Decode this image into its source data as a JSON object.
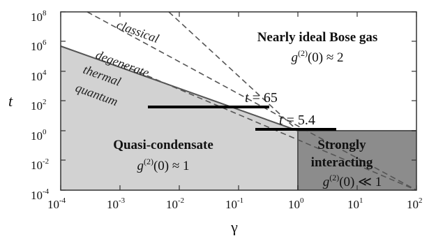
{
  "axes": {
    "xlabel": "γ",
    "ylabel": "t",
    "x_range_exp": [
      -4,
      2
    ],
    "y_range_exp": [
      -4,
      8
    ],
    "x_scale": "log",
    "y_scale": "log",
    "x_ticks": [
      {
        "base": "10",
        "exp": "-4",
        "e": -4
      },
      {
        "base": "10",
        "exp": "-3",
        "e": -3
      },
      {
        "base": "10",
        "exp": "-2",
        "e": -2
      },
      {
        "base": "10",
        "exp": "-1",
        "e": -1
      },
      {
        "base": "10",
        "exp": "0",
        "e": 0
      },
      {
        "base": "10",
        "exp": "1",
        "e": 1
      },
      {
        "base": "10",
        "exp": "2",
        "e": 2
      }
    ],
    "y_ticks": [
      {
        "base": "10",
        "exp": "-4",
        "e": -4
      },
      {
        "base": "10",
        "exp": "-2",
        "e": -2
      },
      {
        "base": "10",
        "exp": "0",
        "e": 0
      },
      {
        "base": "10",
        "exp": "2",
        "e": 2
      },
      {
        "base": "10",
        "exp": "4",
        "e": 4
      },
      {
        "base": "10",
        "exp": "6",
        "e": 6
      },
      {
        "base": "10",
        "exp": "8",
        "e": 8
      }
    ]
  },
  "boundaries": {
    "classical_label": "classical",
    "degenerate_label": "degenerate",
    "thermal_label": "thermal",
    "quantum_label": "quantum"
  },
  "regions": {
    "ideal": {
      "title": "Nearly ideal Bose gas",
      "g_base": "g",
      "g_sup": "(2)",
      "g_rel": "(0) ≈ 2"
    },
    "quasi": {
      "title": "Quasi-condensate",
      "g_base": "g",
      "g_sup": "(2)",
      "g_rel": "(0) ≈ 1"
    },
    "strong": {
      "title_line1": "Strongly",
      "title_line2": "interacting",
      "g_base": "g",
      "g_sup": "(2)",
      "g_rel": "(0) ≪ 1"
    }
  },
  "markers": [
    {
      "t_sym": "t",
      "rel": " = ",
      "value": "65"
    },
    {
      "t_sym": "t",
      "rel": " = ",
      "value": "5.4"
    }
  ],
  "colors": {
    "quasi_fill": "#d2d2d2",
    "strong_fill": "#8c8c8c",
    "boundary": "#555555",
    "marker": "#000000"
  }
}
